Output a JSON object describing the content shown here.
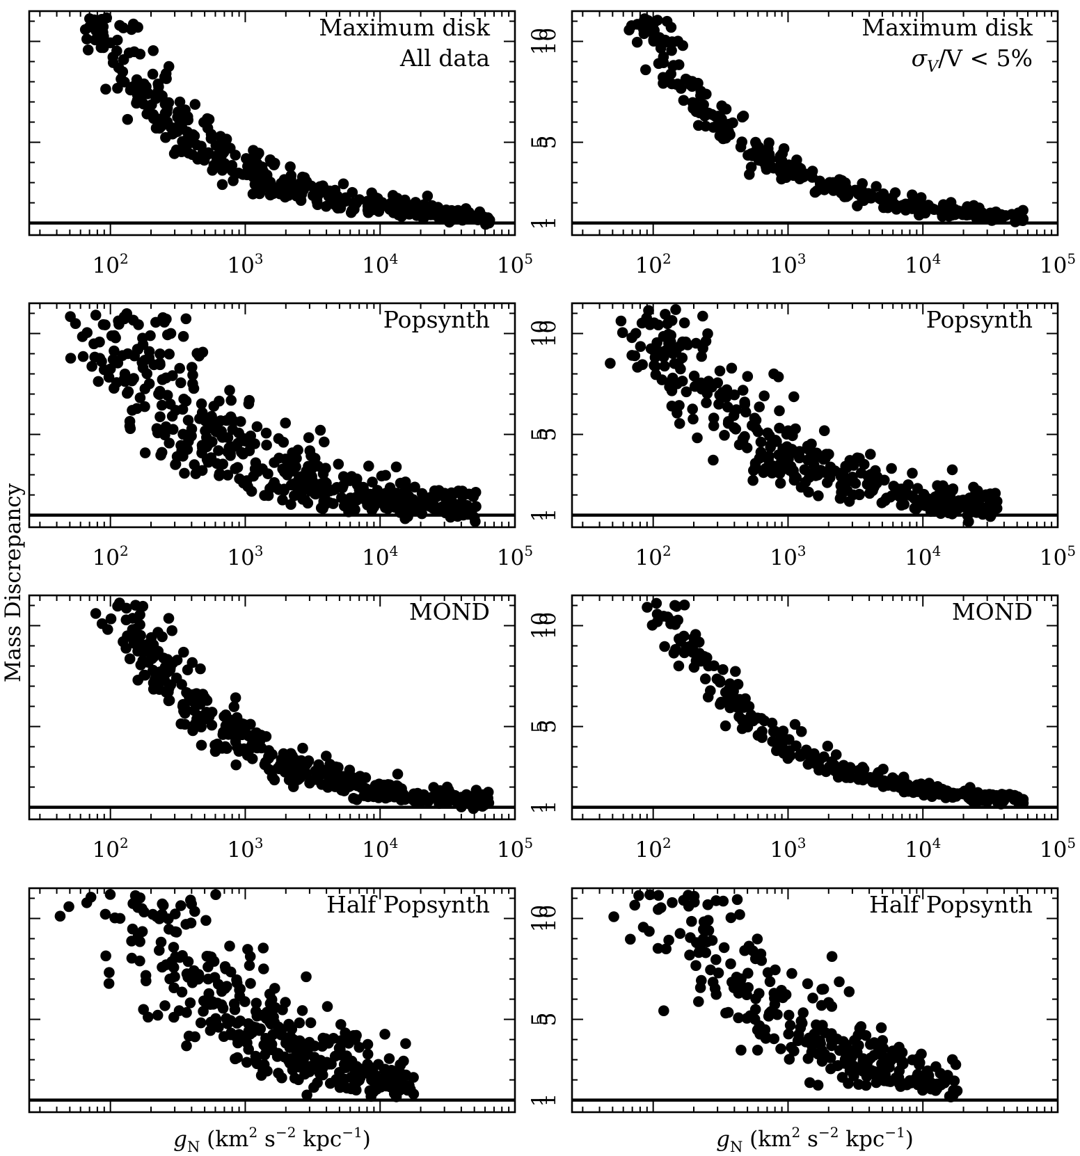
{
  "chart_data": {
    "type": "scatter",
    "ylabel": "Mass Discrepancy",
    "xlabel_parts": {
      "symbol": "g",
      "symbol_sub": "N",
      "open": " (km",
      "sup1": "2",
      "s": " s",
      "sup2": "−2",
      "kpc": " kpc",
      "sup3": "−1",
      "close": ")"
    },
    "x_scale": "log",
    "xlim": [
      25,
      100000
    ],
    "ylim": [
      0.4,
      11.5
    ],
    "x_ticks": [
      {
        "base": "10",
        "exp": "2",
        "value": 100
      },
      {
        "base": "10",
        "exp": "3",
        "value": 1000
      },
      {
        "base": "10",
        "exp": "4",
        "value": 10000
      },
      {
        "base": "10",
        "exp": "5",
        "value": 100000
      }
    ],
    "y_ticks": [
      {
        "label": "1",
        "value": 1
      },
      {
        "label": "5",
        "value": 5
      },
      {
        "label": "10",
        "value": 10
      }
    ],
    "reference_line_y": 1,
    "panels": [
      {
        "id": "max-disk-all",
        "label_lines": [
          "Maximum disk",
          "All data"
        ],
        "spread": 0.16,
        "amp": 2.45,
        "n": 430,
        "xmin": 65,
        "xmax": 65000,
        "show_x_tick_labels": true,
        "seed": 11
      },
      {
        "id": "max-disk-sigma",
        "label_lines": [
          "Maximum disk"
        ],
        "sigma_label": {
          "sigma": "σ",
          "sub": "V",
          "rest": "/V < 5%"
        },
        "spread": 0.1,
        "amp": 2.45,
        "n": 330,
        "xmin": 65,
        "xmax": 56000,
        "show_x_tick_labels": true,
        "seed": 23
      },
      {
        "id": "popsynth-all",
        "label_lines": [
          "Popsynth"
        ],
        "spread": 0.28,
        "amp": 2.55,
        "n": 560,
        "xmin": 30,
        "xmax": 52000,
        "show_x_tick_labels": true,
        "seed": 37
      },
      {
        "id": "popsynth-sigma",
        "label_lines": [
          "Popsynth"
        ],
        "spread": 0.25,
        "amp": 2.55,
        "n": 420,
        "xmin": 45,
        "xmax": 36000,
        "show_x_tick_labels": true,
        "seed": 41
      },
      {
        "id": "mond-all",
        "label_lines": [
          "MOND"
        ],
        "spread": 0.15,
        "amp": 2.85,
        "n": 520,
        "xmin": 30,
        "xmax": 64000,
        "show_x_tick_labels": true,
        "seed": 53
      },
      {
        "id": "mond-sigma",
        "label_lines": [
          "MOND"
        ],
        "spread": 0.09,
        "amp": 2.85,
        "n": 380,
        "xmin": 40,
        "xmax": 56000,
        "show_x_tick_labels": true,
        "seed": 67
      },
      {
        "id": "half-popsynth-all",
        "label_lines": [
          "Half Popsynth"
        ],
        "spread": 0.3,
        "amp": 3.6,
        "n": 560,
        "xmin": 30,
        "xmax": 18000,
        "show_x_tick_labels": false,
        "seed": 71
      },
      {
        "id": "half-popsynth-sigma",
        "label_lines": [
          "Half Popsynth"
        ],
        "spread": 0.28,
        "amp": 3.6,
        "n": 420,
        "xmin": 40,
        "xmax": 18000,
        "show_x_tick_labels": false,
        "seed": 83
      }
    ]
  }
}
